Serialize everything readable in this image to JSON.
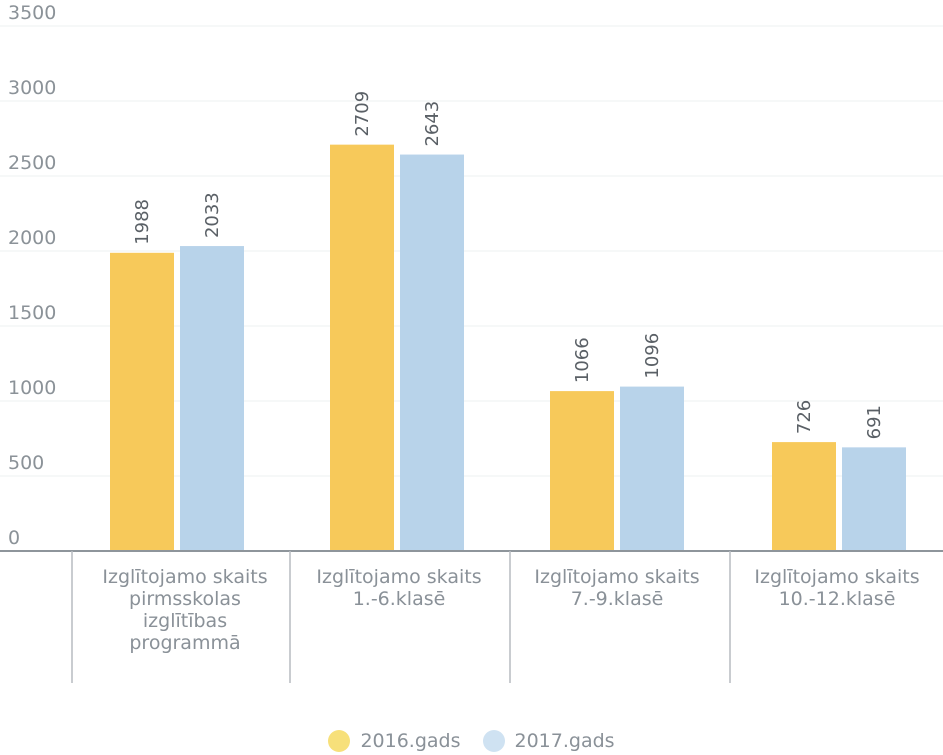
{
  "chart_data": {
    "type": "bar",
    "categories": [
      "Izglītojamo skaits\npirmsskolas\nizglītības\nprogrammā",
      "Izglītojamo skaits\n1.-6.klasē",
      "Izglītojamo skaits\n7.-9.klasē",
      "Izglītojamo skaits\n10.-12.klasē"
    ],
    "series": [
      {
        "name": "2016.gads",
        "values": [
          1988,
          2709,
          1066,
          726
        ],
        "color": "#f7c95a"
      },
      {
        "name": "2017.gads",
        "values": [
          2033,
          2643,
          1096,
          691
        ],
        "color": "#b8d3ea"
      }
    ],
    "yticks": [
      0,
      500,
      1000,
      1500,
      2000,
      2500,
      3000,
      3500
    ],
    "ylim": [
      0,
      3500
    ],
    "grid": true,
    "legend_position": "bottom-center"
  }
}
